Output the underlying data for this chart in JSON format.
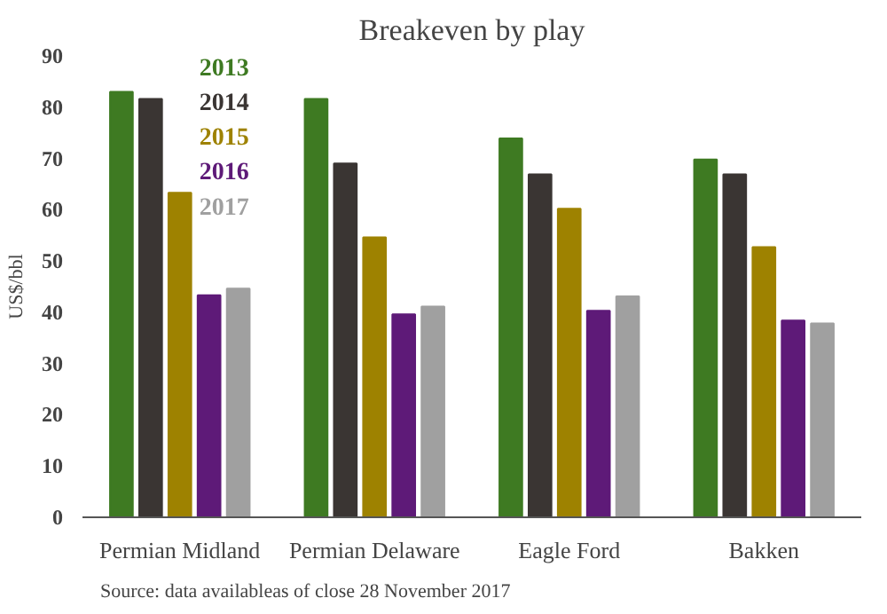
{
  "chart_data": {
    "type": "bar",
    "title": "Breakeven by play",
    "ylabel": "US$/bbl",
    "categories": [
      "Permian Midland",
      "Permian Delaware",
      "Eagle Ford",
      "Bakken"
    ],
    "series": [
      {
        "name": "2013",
        "color": "#3e7a22",
        "values": [
          83.0,
          81.6,
          73.9,
          69.8
        ]
      },
      {
        "name": "2014",
        "color": "#3a3533",
        "values": [
          81.6,
          69.0,
          66.9,
          66.9
        ]
      },
      {
        "name": "2015",
        "color": "#9e8200",
        "values": [
          63.3,
          54.6,
          60.2,
          52.7
        ]
      },
      {
        "name": "2016",
        "color": "#5e1a78",
        "values": [
          43.3,
          39.6,
          40.3,
          38.4
        ]
      },
      {
        "name": "2017",
        "color": "#a0a0a0",
        "values": [
          44.6,
          41.1,
          43.1,
          37.8
        ]
      }
    ],
    "ylim": [
      0,
      90
    ],
    "yticks": [
      0,
      10,
      20,
      30,
      40,
      50,
      60,
      70,
      80,
      90
    ],
    "grid": false,
    "legend": "top left",
    "annotations": [
      "Source: data availableas of close 28 November 2017"
    ]
  }
}
